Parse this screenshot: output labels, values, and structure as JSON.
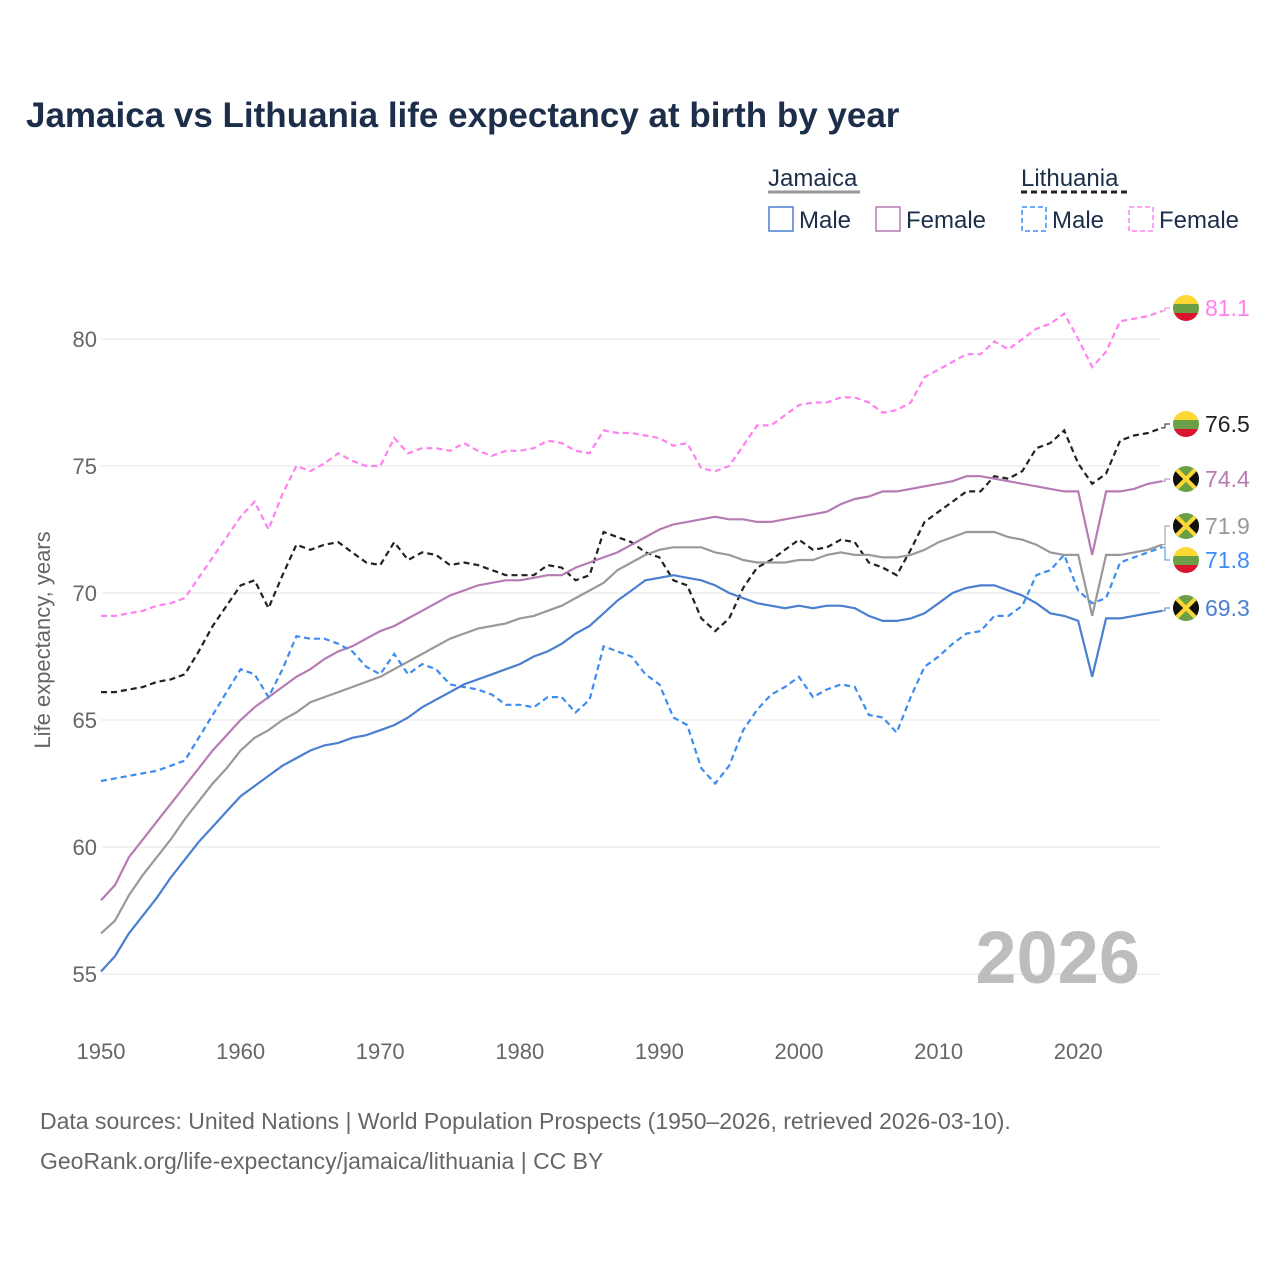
{
  "title": "Jamaica vs Lithuania life expectancy at birth by year",
  "source_line1": "Data sources: United Nations | World Population Prospects (1950–2026, retrieved 2026-03-10).",
  "source_line2": "GeoRank.org/life-expectancy/jamaica/lithuania | CC BY",
  "year_watermark": "2026",
  "legend": {
    "jamaica": "Jamaica",
    "lithuania": "Lithuania",
    "male": "Male",
    "female": "Female"
  },
  "chart_data": {
    "type": "line",
    "title": "Jamaica vs Lithuania life expectancy at birth by year",
    "xlabel": "",
    "ylabel": "Life expectancy, years",
    "xlim": [
      1950,
      2026
    ],
    "ylim": [
      54,
      82.5
    ],
    "xticks": [
      1950,
      1960,
      1970,
      1980,
      1990,
      2000,
      2010,
      2020
    ],
    "yticks": [
      55,
      60,
      65,
      70,
      75,
      80
    ],
    "grid": true,
    "legend_position": "top-right",
    "x_start": 1950,
    "series": [
      {
        "id": "lt_female",
        "name": "Lithuania Female",
        "country": "Lithuania",
        "color": "#ff80f0",
        "dashed": true,
        "end_label": "81.1",
        "flag": "lithuania",
        "values": [
          69.1,
          69.1,
          69.2,
          69.3,
          69.5,
          69.6,
          69.8,
          70.6,
          71.4,
          72.2,
          73.0,
          73.6,
          72.5,
          73.9,
          75.0,
          74.8,
          75.1,
          75.5,
          75.2,
          75.0,
          75.0,
          76.1,
          75.5,
          75.7,
          75.7,
          75.6,
          75.9,
          75.6,
          75.4,
          75.6,
          75.6,
          75.7,
          76.0,
          75.9,
          75.6,
          75.5,
          76.4,
          76.3,
          76.3,
          76.2,
          76.1,
          75.8,
          75.9,
          74.9,
          74.8,
          75.0,
          75.8,
          76.6,
          76.6,
          77.0,
          77.4,
          77.5,
          77.5,
          77.7,
          77.7,
          77.5,
          77.1,
          77.2,
          77.5,
          78.5,
          78.8,
          79.1,
          79.4,
          79.4,
          79.9,
          79.6,
          80.0,
          80.4,
          80.6,
          81.0,
          80.0,
          78.9,
          79.5,
          80.7,
          80.8,
          80.9,
          81.1
        ]
      },
      {
        "id": "lt_total",
        "name": "Lithuania",
        "country": "Lithuania",
        "color": "#222222",
        "dashed": true,
        "end_label": "76.5",
        "flag": "lithuania",
        "values": [
          66.1,
          66.1,
          66.2,
          66.3,
          66.5,
          66.6,
          66.8,
          67.7,
          68.7,
          69.5,
          70.3,
          70.5,
          69.4,
          70.7,
          71.9,
          71.7,
          71.9,
          72.0,
          71.6,
          71.2,
          71.1,
          72.0,
          71.3,
          71.6,
          71.5,
          71.1,
          71.2,
          71.1,
          70.9,
          70.7,
          70.7,
          70.7,
          71.1,
          71.0,
          70.5,
          70.7,
          72.4,
          72.2,
          72.0,
          71.6,
          71.4,
          70.5,
          70.3,
          69.0,
          68.5,
          69.0,
          70.2,
          71.0,
          71.3,
          71.7,
          72.1,
          71.7,
          71.8,
          72.1,
          72.0,
          71.2,
          71.0,
          70.7,
          71.7,
          72.8,
          73.2,
          73.6,
          74.0,
          74.0,
          74.6,
          74.5,
          74.8,
          75.7,
          75.9,
          76.4,
          75.1,
          74.3,
          74.7,
          76.0,
          76.2,
          76.3,
          76.5
        ]
      },
      {
        "id": "jm_female",
        "name": "Jamaica Female",
        "country": "Jamaica",
        "color": "#b77bb4",
        "dashed": false,
        "end_label": "74.4",
        "flag": "jamaica",
        "values": [
          57.9,
          58.5,
          59.6,
          60.3,
          61.0,
          61.7,
          62.4,
          63.1,
          63.8,
          64.4,
          65.0,
          65.5,
          65.9,
          66.3,
          66.7,
          67.0,
          67.4,
          67.7,
          67.9,
          68.2,
          68.5,
          68.7,
          69.0,
          69.3,
          69.6,
          69.9,
          70.1,
          70.3,
          70.4,
          70.5,
          70.5,
          70.6,
          70.7,
          70.7,
          71.0,
          71.2,
          71.4,
          71.6,
          71.9,
          72.2,
          72.5,
          72.7,
          72.8,
          72.9,
          73.0,
          72.9,
          72.9,
          72.8,
          72.8,
          72.9,
          73.0,
          73.1,
          73.2,
          73.5,
          73.7,
          73.8,
          74.0,
          74.0,
          74.1,
          74.2,
          74.3,
          74.4,
          74.6,
          74.6,
          74.5,
          74.4,
          74.3,
          74.2,
          74.1,
          74.0,
          74.0,
          71.5,
          74.0,
          74.0,
          74.1,
          74.3,
          74.4
        ]
      },
      {
        "id": "jm_total",
        "name": "Jamaica",
        "country": "Jamaica",
        "color": "#999999",
        "dashed": false,
        "end_label": "71.9",
        "flag": "jamaica",
        "values": [
          56.6,
          57.1,
          58.1,
          58.9,
          59.6,
          60.3,
          61.1,
          61.8,
          62.5,
          63.1,
          63.8,
          64.3,
          64.6,
          65.0,
          65.3,
          65.7,
          65.9,
          66.1,
          66.3,
          66.5,
          66.7,
          67.0,
          67.3,
          67.6,
          67.9,
          68.2,
          68.4,
          68.6,
          68.7,
          68.8,
          69.0,
          69.1,
          69.3,
          69.5,
          69.8,
          70.1,
          70.4,
          70.9,
          71.2,
          71.5,
          71.7,
          71.8,
          71.8,
          71.8,
          71.6,
          71.5,
          71.3,
          71.2,
          71.2,
          71.2,
          71.3,
          71.3,
          71.5,
          71.6,
          71.5,
          71.5,
          71.4,
          71.4,
          71.5,
          71.7,
          72.0,
          72.2,
          72.4,
          72.4,
          72.4,
          72.2,
          72.1,
          71.9,
          71.6,
          71.5,
          71.5,
          69.1,
          71.5,
          71.5,
          71.6,
          71.7,
          71.9
        ]
      },
      {
        "id": "lt_male",
        "name": "Lithuania Male",
        "country": "Lithuania",
        "color": "#3d8df0",
        "dashed": true,
        "end_label": "71.8",
        "flag": "lithuania",
        "values": [
          62.6,
          62.7,
          62.8,
          62.9,
          63.0,
          63.2,
          63.4,
          64.3,
          65.2,
          66.1,
          67.0,
          66.8,
          65.9,
          67.0,
          68.3,
          68.2,
          68.2,
          68.0,
          67.7,
          67.1,
          66.8,
          67.6,
          66.8,
          67.2,
          67.0,
          66.4,
          66.3,
          66.2,
          66.0,
          65.6,
          65.6,
          65.5,
          65.9,
          65.9,
          65.3,
          65.8,
          67.9,
          67.7,
          67.5,
          66.8,
          66.4,
          65.1,
          64.8,
          63.1,
          62.5,
          63.2,
          64.6,
          65.4,
          66.0,
          66.3,
          66.7,
          65.9,
          66.2,
          66.4,
          66.3,
          65.2,
          65.1,
          64.5,
          65.9,
          67.1,
          67.5,
          68.0,
          68.4,
          68.5,
          69.1,
          69.1,
          69.5,
          70.7,
          70.9,
          71.5,
          70.1,
          69.6,
          69.8,
          71.2,
          71.4,
          71.6,
          71.8
        ]
      },
      {
        "id": "jm_male",
        "name": "Jamaica Male",
        "country": "Jamaica",
        "color": "#4a7fd0",
        "dashed": false,
        "end_label": "69.3",
        "flag": "jamaica",
        "values": [
          55.1,
          55.7,
          56.6,
          57.3,
          58.0,
          58.8,
          59.5,
          60.2,
          60.8,
          61.4,
          62.0,
          62.4,
          62.8,
          63.2,
          63.5,
          63.8,
          64.0,
          64.1,
          64.3,
          64.4,
          64.6,
          64.8,
          65.1,
          65.5,
          65.8,
          66.1,
          66.4,
          66.6,
          66.8,
          67.0,
          67.2,
          67.5,
          67.7,
          68.0,
          68.4,
          68.7,
          69.2,
          69.7,
          70.1,
          70.5,
          70.6,
          70.7,
          70.6,
          70.5,
          70.3,
          70.0,
          69.8,
          69.6,
          69.5,
          69.4,
          69.5,
          69.4,
          69.5,
          69.5,
          69.4,
          69.1,
          68.9,
          68.9,
          69.0,
          69.2,
          69.6,
          70.0,
          70.2,
          70.3,
          70.3,
          70.1,
          69.9,
          69.6,
          69.2,
          69.1,
          68.9,
          66.7,
          69.0,
          69.0,
          69.1,
          69.2,
          69.3
        ]
      }
    ]
  }
}
